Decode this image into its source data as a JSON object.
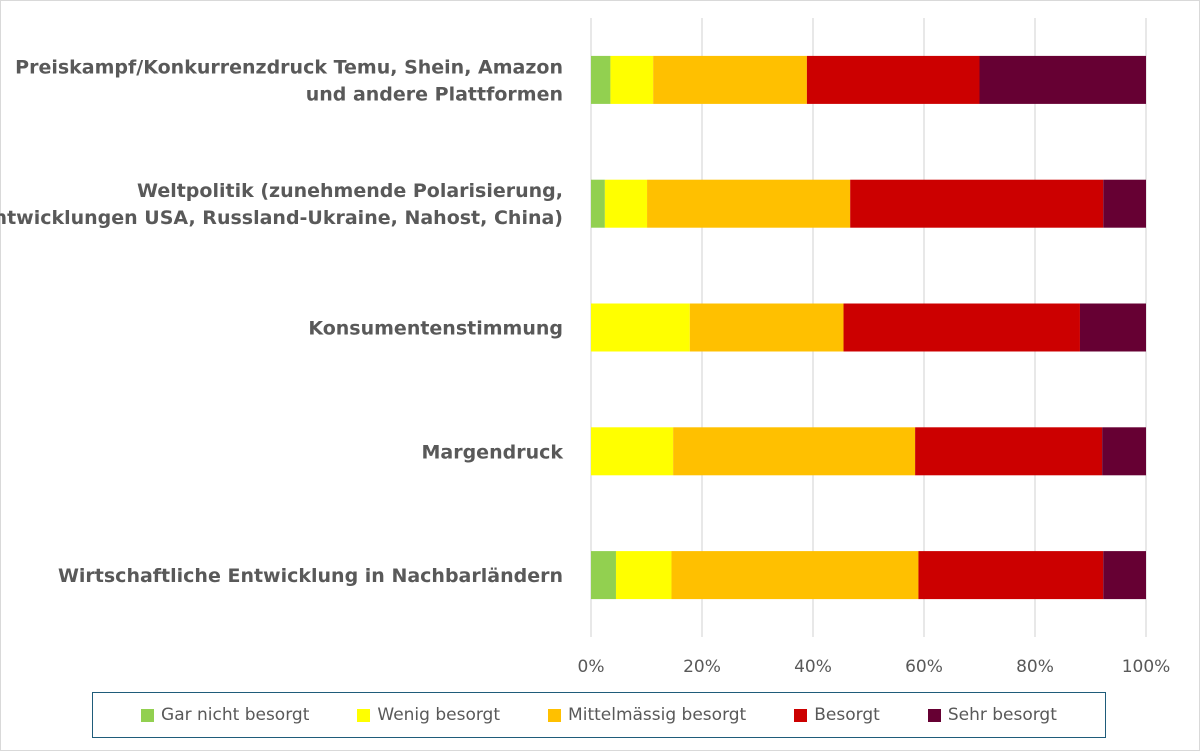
{
  "chart_data": {
    "type": "bar",
    "orientation": "horizontal",
    "stacked": "percent",
    "categories": [
      [
        "Preiskampf/Konkurrenzdruck Temu, Shein, Amazon",
        "und andere Plattformen"
      ],
      [
        "Weltpolitik (zunehmende Polarisierung,",
        "Entwicklungen USA, Russland-Ukraine, Nahost, China)"
      ],
      [
        "Konsumentenstimmung"
      ],
      [
        "Margendruck"
      ],
      [
        "Wirtschaftliche Entwicklung in Nachbarländern"
      ]
    ],
    "series": [
      {
        "name": "Gar nicht besorgt",
        "color": "#92d050",
        "values": [
          3.5,
          2.5,
          0,
          0,
          4.5
        ]
      },
      {
        "name": "Wenig besorgt",
        "color": "#ffff00",
        "values": [
          7.7,
          7.6,
          17.8,
          14.8,
          10.0
        ]
      },
      {
        "name": "Mittelmässig besorgt",
        "color": "#ffc000",
        "values": [
          27.7,
          36.6,
          27.7,
          43.6,
          44.5
        ]
      },
      {
        "name": "Besorgt",
        "color": "#cc0000",
        "values": [
          31.1,
          45.6,
          42.6,
          33.7,
          33.3
        ]
      },
      {
        "name": "Sehr besorgt",
        "color": "#660033",
        "values": [
          30.0,
          7.7,
          11.9,
          7.9,
          7.7
        ]
      }
    ],
    "xlim": [
      0,
      100
    ],
    "xticks": [
      "0%",
      "20%",
      "40%",
      "60%",
      "80%",
      "100%"
    ],
    "grid": true,
    "legend_position": "bottom"
  }
}
